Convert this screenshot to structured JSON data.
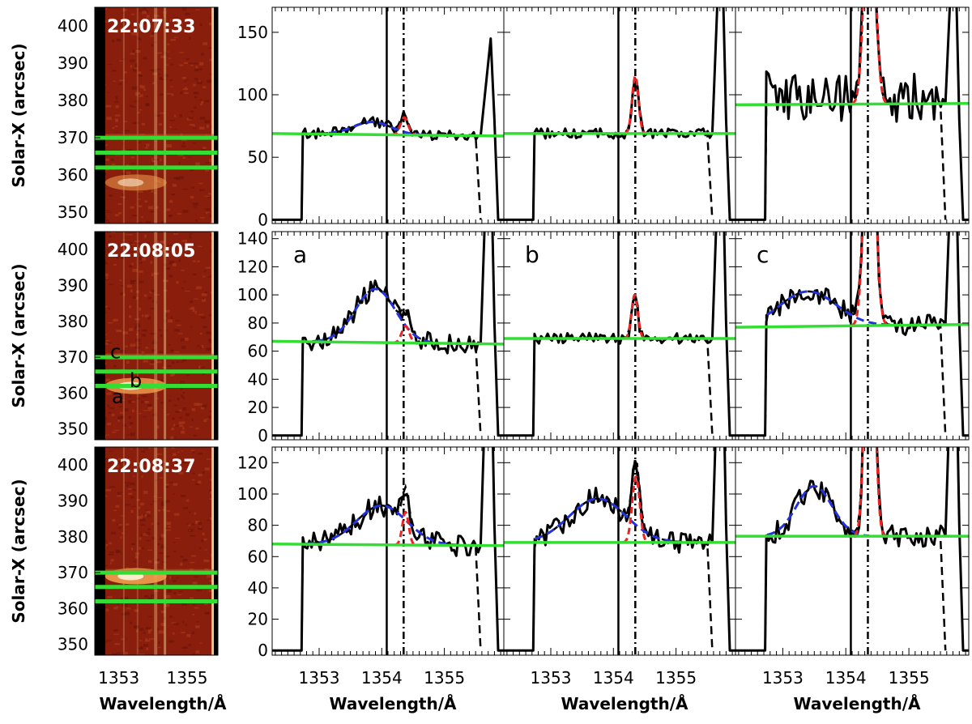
{
  "chart_data": {
    "type": "line",
    "colors": {
      "observed": "#000000",
      "continuum": "#33dd33",
      "broad_fit": "#2233dd",
      "narrow_fit": "#ee2222",
      "map_low": "#6a1008",
      "map_high": "#ffffff"
    },
    "image_panels": {
      "ylabel": "Solar-X (arcsec)",
      "xlabel": "Wavelength/Å",
      "y_ticks": [
        "400",
        "390",
        "380",
        "370",
        "360",
        "350"
      ],
      "x_ticks": [
        "1353",
        "1355"
      ],
      "ylim": [
        347,
        405
      ],
      "xlim": [
        1352.3,
        1355.9
      ],
      "cut_positions": [
        370,
        366,
        362
      ],
      "rows": [
        {
          "time": "22:07:33",
          "labels": []
        },
        {
          "time": "22:08:05",
          "labels": [
            {
              "text": "c",
              "y": 371.5
            },
            {
              "text": "b",
              "y": 363.5
            },
            {
              "text": "a",
              "y": 359
            }
          ]
        },
        {
          "time": "22:08:37",
          "labels": []
        }
      ]
    },
    "spectra": {
      "xlabel": "Wavelength/Å",
      "x_ticks": [
        "1353",
        "1354",
        "1355"
      ],
      "xlim": [
        1352.25,
        1355.95
      ],
      "reference_lines": {
        "solid": 1354.08,
        "dashdot": 1354.35
      },
      "rows": [
        {
          "ylim": [
            -3,
            170
          ],
          "y_ticks": [
            "0",
            "50",
            "100",
            "150"
          ]
        },
        {
          "ylim": [
            -3,
            145
          ],
          "y_ticks": [
            "0",
            "20",
            "40",
            "60",
            "80",
            "100",
            "120",
            "140"
          ]
        },
        {
          "ylim": [
            -3,
            130
          ],
          "y_ticks": [
            "0",
            "20",
            "40",
            "60",
            "80",
            "100",
            "120"
          ]
        }
      ],
      "panels": [
        {
          "row": 0,
          "col": 0,
          "label": "",
          "continuum": [
            69,
            67
          ],
          "broad": {
            "center": 1353.85,
            "peak": 10,
            "width": 0.3
          },
          "narrow": {
            "center": 1354.36,
            "peak": 14,
            "width": 0.06
          },
          "level": 0
        },
        {
          "row": 0,
          "col": 1,
          "label": "",
          "continuum": [
            69,
            69
          ],
          "broad": null,
          "narrow": {
            "center": 1354.35,
            "peak": 46,
            "width": 0.05
          },
          "level": 0
        },
        {
          "row": 0,
          "col": 2,
          "label": "",
          "continuum": [
            92,
            93
          ],
          "broad": null,
          "narrow": {
            "center": 1354.38,
            "peak": 200,
            "width": 0.08
          },
          "level": 1
        },
        {
          "row": 1,
          "col": 0,
          "label": "a",
          "continuum": [
            67,
            65
          ],
          "broad": {
            "center": 1353.9,
            "peak": 38,
            "width": 0.32
          },
          "narrow": {
            "center": 1354.38,
            "peak": 12,
            "width": 0.06
          },
          "level": 1
        },
        {
          "row": 1,
          "col": 1,
          "label": "b",
          "continuum": [
            69,
            69
          ],
          "broad": null,
          "narrow": {
            "center": 1354.34,
            "peak": 31,
            "width": 0.05
          },
          "level": 0
        },
        {
          "row": 1,
          "col": 2,
          "label": "c",
          "continuum": [
            77,
            79
          ],
          "broad": {
            "center": 1353.4,
            "peak": 25,
            "width": 0.45
          },
          "narrow": {
            "center": 1354.38,
            "peak": 200,
            "width": 0.08
          },
          "level": 1
        },
        {
          "row": 2,
          "col": 0,
          "label": "",
          "continuum": [
            68,
            67
          ],
          "broad": {
            "center": 1354.0,
            "peak": 25,
            "width": 0.4
          },
          "narrow": {
            "center": 1354.38,
            "peak": 21,
            "width": 0.05
          },
          "level": 1
        },
        {
          "row": 2,
          "col": 1,
          "label": "",
          "continuum": [
            69,
            69
          ],
          "broad": {
            "center": 1353.75,
            "peak": 28,
            "width": 0.45
          },
          "narrow": {
            "center": 1354.36,
            "peak": 42,
            "width": 0.06
          },
          "level": 1
        },
        {
          "row": 2,
          "col": 2,
          "label": "",
          "continuum": [
            73,
            73
          ],
          "broad": {
            "center": 1353.5,
            "peak": 32,
            "width": 0.28
          },
          "narrow": {
            "center": 1354.38,
            "peak": 200,
            "width": 0.07
          },
          "level": 1
        }
      ]
    }
  }
}
